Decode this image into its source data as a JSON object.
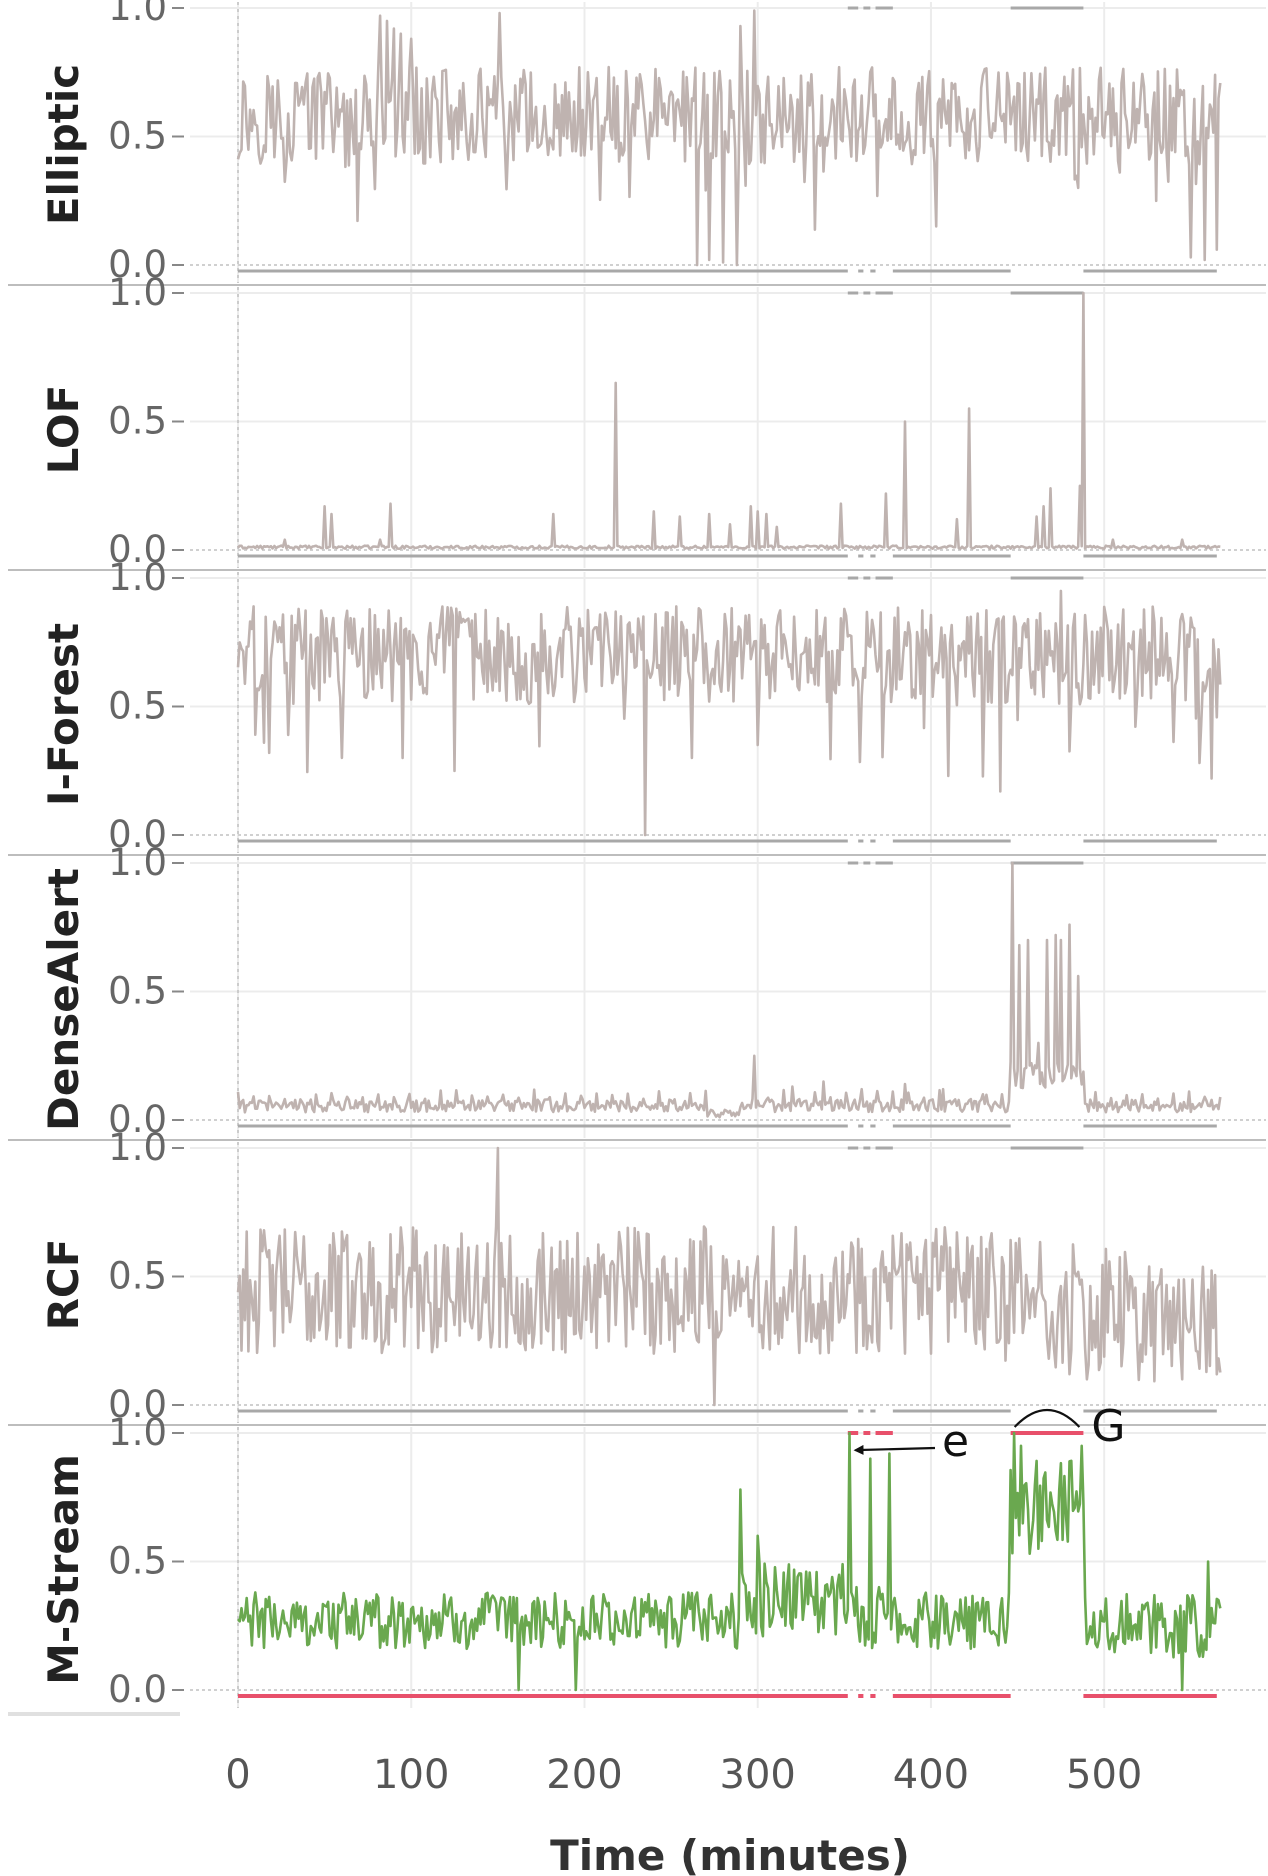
{
  "chart_data": {
    "type": "line",
    "xlabel": "Time (minutes)",
    "xlim": [
      0,
      568
    ],
    "x_ticks": [
      "0",
      "100",
      "200",
      "300",
      "400",
      "500"
    ],
    "y_ticks": [
      "0.0",
      "0.5",
      "1.0"
    ],
    "ylim": [
      0,
      1
    ],
    "grid": true,
    "num_points": 568,
    "colors": {
      "score": "#bfb3b0",
      "mstream": "#6aa84f",
      "groundtruth_gray": "#a8a8a8",
      "groundtruth_red": "#e8506b"
    },
    "anomaly_segments": [
      {
        "start": 352,
        "end": 358
      },
      {
        "start": 361,
        "end": 365
      },
      {
        "start": 368,
        "end": 378
      },
      {
        "start": 446,
        "end": 488
      }
    ],
    "panels": [
      {
        "name": "Elliptic",
        "spikes": [
          {
            "x": 82,
            "y": 0.97
          },
          {
            "x": 86,
            "y": 0.95
          },
          {
            "x": 90,
            "y": 0.92
          },
          {
            "x": 94,
            "y": 0.9
          },
          {
            "x": 100,
            "y": 0.88
          },
          {
            "x": 151,
            "y": 0.98
          },
          {
            "x": 265,
            "y": 0.0
          },
          {
            "x": 272,
            "y": 0.02
          },
          {
            "x": 280,
            "y": 0.01
          },
          {
            "x": 288,
            "y": 0.0
          },
          {
            "x": 290,
            "y": 0.93
          },
          {
            "x": 298,
            "y": 0.99
          },
          {
            "x": 403,
            "y": 0.15
          },
          {
            "x": 485,
            "y": 0.3
          },
          {
            "x": 530,
            "y": 0.25
          },
          {
            "x": 550,
            "y": 0.03
          },
          {
            "x": 558,
            "y": 0.02
          },
          {
            "x": 565,
            "y": 0.06
          }
        ]
      },
      {
        "name": "LOF",
        "spikes": [
          {
            "x": 27,
            "y": 0.04
          },
          {
            "x": 50,
            "y": 0.17
          },
          {
            "x": 54,
            "y": 0.14
          },
          {
            "x": 82,
            "y": 0.04
          },
          {
            "x": 88,
            "y": 0.18
          },
          {
            "x": 182,
            "y": 0.14
          },
          {
            "x": 218,
            "y": 0.65
          },
          {
            "x": 240,
            "y": 0.15
          },
          {
            "x": 255,
            "y": 0.13
          },
          {
            "x": 272,
            "y": 0.14
          },
          {
            "x": 284,
            "y": 0.1
          },
          {
            "x": 296,
            "y": 0.17
          },
          {
            "x": 300,
            "y": 0.15
          },
          {
            "x": 305,
            "y": 0.14
          },
          {
            "x": 311,
            "y": 0.09
          },
          {
            "x": 348,
            "y": 0.18
          },
          {
            "x": 374,
            "y": 0.22
          },
          {
            "x": 385,
            "y": 0.5
          },
          {
            "x": 415,
            "y": 0.12
          },
          {
            "x": 422,
            "y": 0.55
          },
          {
            "x": 461,
            "y": 0.13
          },
          {
            "x": 465,
            "y": 0.17
          },
          {
            "x": 469,
            "y": 0.24
          },
          {
            "x": 486,
            "y": 0.25
          },
          {
            "x": 488,
            "y": 1.0
          },
          {
            "x": 505,
            "y": 0.04
          },
          {
            "x": 545,
            "y": 0.04
          }
        ]
      },
      {
        "name": "I-Forest",
        "spikes": [
          {
            "x": 18,
            "y": 0.32
          },
          {
            "x": 60,
            "y": 0.3
          },
          {
            "x": 95,
            "y": 0.3
          },
          {
            "x": 125,
            "y": 0.25
          },
          {
            "x": 235,
            "y": 0.0
          },
          {
            "x": 262,
            "y": 0.3
          },
          {
            "x": 300,
            "y": 0.35
          },
          {
            "x": 410,
            "y": 0.23
          },
          {
            "x": 440,
            "y": 0.17
          },
          {
            "x": 448,
            "y": 0.85
          },
          {
            "x": 475,
            "y": 0.95
          },
          {
            "x": 555,
            "y": 0.28
          },
          {
            "x": 562,
            "y": 0.22
          }
        ]
      },
      {
        "name": "DenseAlert",
        "spikes": [
          {
            "x": 298,
            "y": 0.25
          },
          {
            "x": 320,
            "y": 0.13
          },
          {
            "x": 338,
            "y": 0.15
          },
          {
            "x": 360,
            "y": 0.12
          },
          {
            "x": 385,
            "y": 0.14
          },
          {
            "x": 407,
            "y": 0.12
          },
          {
            "x": 430,
            "y": 0.1
          },
          {
            "x": 447,
            "y": 1.0
          },
          {
            "x": 451,
            "y": 0.68
          },
          {
            "x": 456,
            "y": 0.7
          },
          {
            "x": 462,
            "y": 0.3
          },
          {
            "x": 467,
            "y": 0.7
          },
          {
            "x": 472,
            "y": 0.72
          },
          {
            "x": 475,
            "y": 0.7
          },
          {
            "x": 480,
            "y": 0.76
          },
          {
            "x": 485,
            "y": 0.56
          }
        ]
      },
      {
        "name": "RCF",
        "spikes": [
          {
            "x": 150,
            "y": 1.0
          },
          {
            "x": 120,
            "y": 0.25
          },
          {
            "x": 240,
            "y": 0.2
          },
          {
            "x": 275,
            "y": 0.0
          },
          {
            "x": 385,
            "y": 0.2
          },
          {
            "x": 400,
            "y": 0.2
          },
          {
            "x": 480,
            "y": 0.12
          },
          {
            "x": 490,
            "y": 0.1
          },
          {
            "x": 545,
            "y": 0.1
          },
          {
            "x": 565,
            "y": 0.12
          }
        ]
      },
      {
        "name": "M-Stream",
        "spikes": [
          {
            "x": 162,
            "y": 0.0
          },
          {
            "x": 195,
            "y": 0.0
          },
          {
            "x": 290,
            "y": 0.78
          },
          {
            "x": 300,
            "y": 0.6
          },
          {
            "x": 353,
            "y": 1.0
          },
          {
            "x": 357,
            "y": 0.4
          },
          {
            "x": 365,
            "y": 0.9
          },
          {
            "x": 370,
            "y": 0.4
          },
          {
            "x": 376,
            "y": 0.92
          },
          {
            "x": 448,
            "y": 1.0
          },
          {
            "x": 452,
            "y": 0.95
          },
          {
            "x": 487,
            "y": 0.95
          },
          {
            "x": 545,
            "y": 0.0
          },
          {
            "x": 560,
            "y": 0.5
          }
        ]
      }
    ],
    "annotations": [
      {
        "text": "e",
        "target_x": 353,
        "target_y": 0.98
      },
      {
        "text": "G",
        "target_x": 467,
        "target_y": 1.0
      }
    ]
  }
}
